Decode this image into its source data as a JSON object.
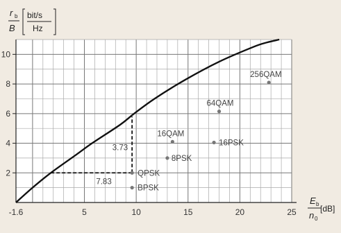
{
  "chart_data": {
    "type": "line",
    "ylabel_var": "r",
    "ylabel_sub": "b",
    "ylabel_den": "B",
    "ylabel_unit_num": "bit/s",
    "ylabel_unit_den": "Hz",
    "xlabel_num_var": "E",
    "xlabel_num_sub": "b",
    "xlabel_den_var": "n",
    "xlabel_den_sub": "0",
    "xlabel_unit": "[dB]",
    "xlim": [
      -1.6,
      25
    ],
    "ylim": [
      0,
      11
    ],
    "x_ticks": [
      "-1.6",
      "5",
      "10",
      "15",
      "20",
      "25"
    ],
    "y_ticks": [
      "2",
      "4",
      "6",
      "8",
      "10"
    ],
    "grid": true,
    "series": [
      {
        "x": [
          -1.6,
          0,
          1.76,
          4.26,
          5.74,
          8.45,
          9.8,
          11.76,
          14.77,
          17.99,
          21.3,
          22.6,
          23.8
        ],
        "y": [
          0,
          1,
          2,
          3.25,
          4,
          5.25,
          6,
          7,
          8.3,
          9.5,
          10.5,
          10.8,
          11
        ]
      }
    ],
    "points": [
      {
        "name": "256QAM",
        "x": 22.8,
        "y": 8.1
      },
      {
        "name": "64QAM",
        "x": 18.0,
        "y": 6.15
      },
      {
        "name": "16QAM",
        "x": 13.5,
        "y": 4.1
      },
      {
        "name": "16PSK",
        "x": 17.5,
        "y": 4.05
      },
      {
        "name": "8PSK",
        "x": 13.0,
        "y": 3.0
      },
      {
        "name": "QPSK",
        "x": 9.6,
        "y": 2.0
      },
      {
        "name": "BPSK",
        "x": 9.6,
        "y": 1.0
      }
    ],
    "annotations": [
      {
        "text": "3.73",
        "x": 9.6,
        "y": 3.73
      },
      {
        "text": "7.83",
        "x": 7.83,
        "y": 2
      }
    ]
  }
}
